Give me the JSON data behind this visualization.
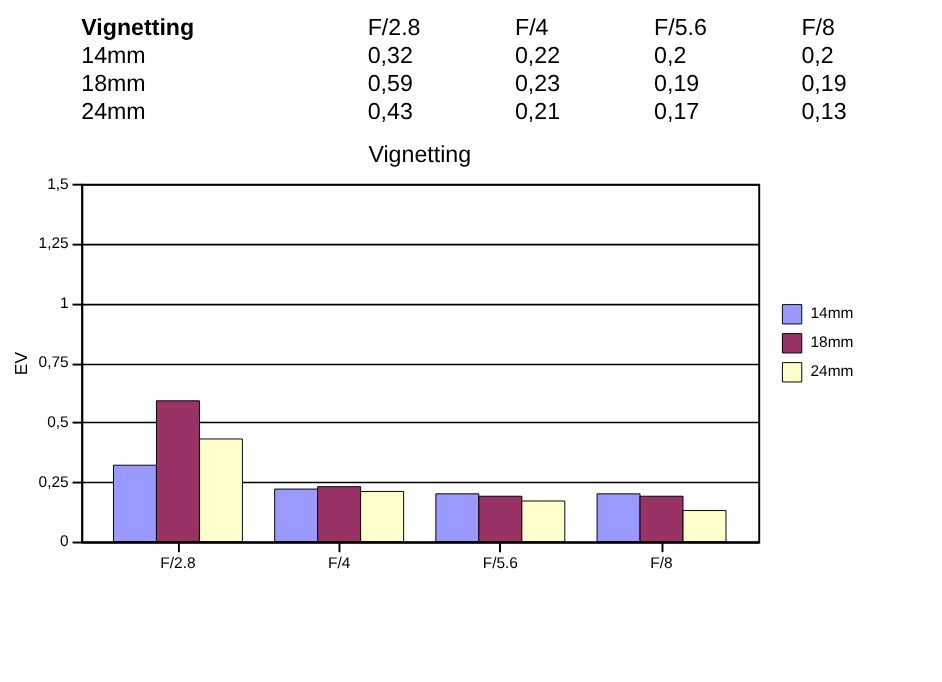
{
  "chart_data": {
    "type": "bar",
    "title": "Vignetting",
    "ylabel": "EV",
    "annotations": [
      "Vignetting",
      "F/2.8",
      "F/4",
      "F/5.6",
      "F/8",
      "14mm",
      "0,32",
      "0,22",
      "0,2",
      "0,2",
      "18mm",
      "0,59",
      "0,23",
      "0,19",
      "0,19",
      "24mm",
      "0,43",
      "0,21",
      "0,17",
      "0,13"
    ],
    "categories": [
      "F/2.8",
      "F/4",
      "F/5.6",
      "F/8"
    ],
    "series": [
      {
        "name": "14mm",
        "color": "#9999ff",
        "values": [
          0.32,
          0.22,
          0.2,
          0.2
        ]
      },
      {
        "name": "18mm",
        "color": "#993366",
        "values": [
          0.59,
          0.23,
          0.19,
          0.19
        ]
      },
      {
        "name": "24mm",
        "color": "#ffffcc",
        "values": [
          0.43,
          0.21,
          0.17,
          0.13
        ]
      }
    ],
    "ylim": [
      0,
      1.5
    ],
    "yticks": [
      0,
      {
        "value": 0.25,
        "label": "0,25"
      },
      {
        "value": 0.5,
        "label": "0,5"
      },
      {
        "value": 0.75,
        "label": "0,75"
      },
      1,
      {
        "value": 1.25,
        "label": "1,25"
      },
      {
        "value": 1.5,
        "label": "1,5"
      }
    ],
    "grid": "y",
    "legend": "right"
  }
}
